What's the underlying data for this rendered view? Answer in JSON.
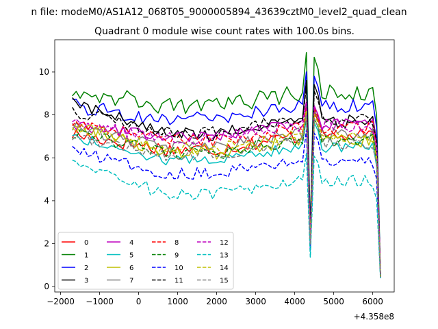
{
  "chart_data": {
    "type": "line",
    "suptitle": "n file: modeM0/AS1A12_068T05_9000005894_43639cztM0_level2_quad_clean",
    "title": "Quadrant 0 module wise count rates with 100.0s bins.",
    "xlabel": "",
    "ylabel": "",
    "offset_label": "+4.358e8",
    "x_ticks": [
      -2000,
      -1000,
      0,
      1000,
      2000,
      3000,
      4000,
      5000,
      6000
    ],
    "x_tick_labels": [
      "−2000",
      "−1000",
      "0",
      "1000",
      "2000",
      "3000",
      "4000",
      "5000",
      "6000"
    ],
    "y_ticks": [
      0,
      2,
      4,
      6,
      8,
      10
    ],
    "y_tick_labels": [
      "0",
      "2",
      "4",
      "6",
      "8",
      "10"
    ],
    "xlim": [
      -2150,
      6550
    ],
    "ylim": [
      -0.25,
      11.5
    ],
    "grid": false,
    "legend_position": "lower-left",
    "legend_columns": 4,
    "dip_points": [
      [
        4200,
        1
      ],
      [
        4300,
        1
      ],
      [
        4400,
        0.32
      ],
      [
        4500,
        1
      ],
      [
        4600,
        1
      ]
    ],
    "series": [
      {
        "name": "0",
        "color": "#ff0000",
        "dash": "solid",
        "base": 6.4,
        "start": 7.1,
        "rise": 8.3,
        "end": 0.5,
        "amp": 0.35
      },
      {
        "name": "1",
        "color": "#008000",
        "dash": "solid",
        "base": 8.4,
        "start": 9.2,
        "rise": 10.9,
        "end": 0.5,
        "amp": 0.4
      },
      {
        "name": "2",
        "color": "#0000ff",
        "dash": "solid",
        "base": 7.8,
        "start": 8.4,
        "rise": 10.0,
        "end": 0.45,
        "amp": 0.35
      },
      {
        "name": "3",
        "color": "#000000",
        "dash": "solid",
        "base": 7.1,
        "start": 8.6,
        "rise": 9.6,
        "end": 0.45,
        "amp": 0.3
      },
      {
        "name": "4",
        "color": "#bf00bf",
        "dash": "solid",
        "base": 7.0,
        "start": 7.5,
        "rise": 8.6,
        "end": 0.5,
        "amp": 0.25
      },
      {
        "name": "5",
        "color": "#00bfbf",
        "dash": "solid",
        "base": 5.9,
        "start": 7.0,
        "rise": 7.8,
        "end": 0.4,
        "amp": 0.25
      },
      {
        "name": "6",
        "color": "#bfbf00",
        "dash": "solid",
        "base": 6.2,
        "start": 7.6,
        "rise": 8.0,
        "end": 0.45,
        "amp": 0.3
      },
      {
        "name": "7",
        "color": "#808080",
        "dash": "solid",
        "base": 6.5,
        "start": 7.4,
        "rise": 8.4,
        "end": 0.45,
        "amp": 0.3
      },
      {
        "name": "8",
        "color": "#ff0000",
        "dash": "dashed",
        "base": 6.8,
        "start": 7.7,
        "rise": 8.5,
        "end": 0.5,
        "amp": 0.3
      },
      {
        "name": "9",
        "color": "#008000",
        "dash": "dashed",
        "base": 6.2,
        "start": 7.2,
        "rise": 8.0,
        "end": 0.45,
        "amp": 0.3
      },
      {
        "name": "10",
        "color": "#0000ff",
        "dash": "dashed",
        "base": 5.3,
        "start": 6.3,
        "rise": 7.3,
        "end": 0.4,
        "amp": 0.3
      },
      {
        "name": "11",
        "color": "#000000",
        "dash": "dashed",
        "base": 7.2,
        "start": 8.2,
        "rise": 9.3,
        "end": 0.5,
        "amp": 0.3
      },
      {
        "name": "12",
        "color": "#bf00bf",
        "dash": "dashed",
        "base": 6.9,
        "start": 7.6,
        "rise": 8.6,
        "end": 0.5,
        "amp": 0.3
      },
      {
        "name": "13",
        "color": "#00bfbf",
        "dash": "dashed",
        "base": 4.3,
        "start": 5.9,
        "rise": 6.2,
        "end": 0.35,
        "amp": 0.3
      },
      {
        "name": "14",
        "color": "#bfbf00",
        "dash": "dashed",
        "base": 6.4,
        "start": 7.5,
        "rise": 8.2,
        "end": 0.45,
        "amp": 0.3
      },
      {
        "name": "15",
        "color": "#808080",
        "dash": "dashed",
        "base": 6.1,
        "start": 7.0,
        "rise": 8.0,
        "end": 0.45,
        "amp": 0.3
      }
    ]
  }
}
